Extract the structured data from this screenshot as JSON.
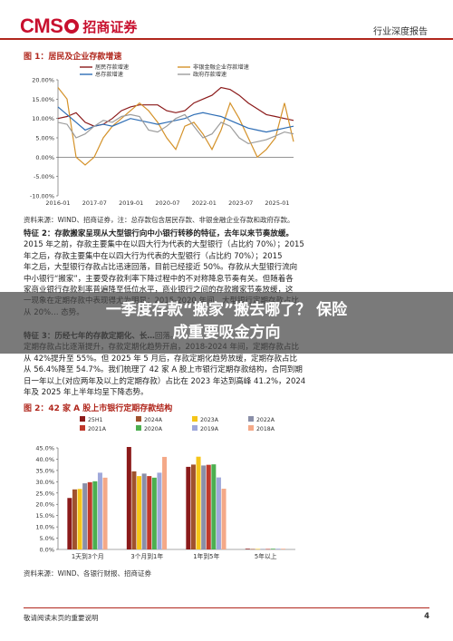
{
  "header": {
    "logo_text": "CMS",
    "logo_cn": "招商证券",
    "report_type": "行业深度报告"
  },
  "figure1": {
    "title": "图 1：居民及企业存款增速",
    "source": "资料来源：WIND、招商证券，注：总存款包含居民存款、非银金融企业存款和政府存款。"
  },
  "body1": [
    {
      "bold": "特征 2：存款搬家呈现从大型银行向中小银行转移的特征，去年以来节奏放缓。",
      "text": ""
    },
    {
      "bold": "",
      "text": "2015 年之前，存款主要集中在以四大行为代表的大型银行（占比约 70%）；2015"
    },
    {
      "bold": "",
      "text": "年之后，存款主要集中在以四大行为代表的大型银行（占比约 70%）；2015"
    },
    {
      "bold": "",
      "text": "年之后，大型银行存款占比迅速回落，目前已经接近 50%。存款从大型银行流向"
    },
    {
      "bold": "",
      "text": "中小银行“搬家”，主要受存款利率下降过程中的不对称降息节奏有关。但随着各"
    },
    {
      "bold": "",
      "text": "家商业银行存款利率普遍降至低位水平，商业银行之间的存款搬家节奏放缓，这"
    },
    {
      "bold": "",
      "text": "一现象在定期存款中表现得尤为明显：2015-2020 年间，大型银行定期存款占比"
    },
    {
      "bold": "",
      "text": "从 20%… 态势。"
    }
  ],
  "body2": [
    {
      "bold": "特征 3：历经七年的存款定期化、长…",
      "text": "回落。"
    },
    {
      "bold": "",
      "text": "定期存款占比逐渐提升，存款定期化趋势开启，2018-2024 年间，定期存款占比"
    },
    {
      "bold": "",
      "text": "从 42%提升至 55%。但 2025 年 5 月后，存款定期化趋势放缓，定期存款占比"
    },
    {
      "bold": "",
      "text": "从 56.4%降至 54.7%。我们梳理了 42 家 A 股上市银行定期存款结构，合同到期"
    },
    {
      "bold": "",
      "text": "日一年以上(对应两年及以上的定期存款）占比在 2023 年达到高峰 41.2%，2024"
    },
    {
      "bold": "",
      "text": "年及 2025 年上半年均呈下降态势。"
    }
  ],
  "overlay": {
    "line1": "一季度存款“搬家”搬去哪了？ 保险",
    "line2": "成重要吸金方向"
  },
  "figure2": {
    "title": "图 2：42 家 A 股上市银行定期存款结构",
    "source": "资料来源：WIND、各银行财报、招商证券"
  },
  "footer": {
    "note": "敬请阅读末页的重要说明",
    "page": "4"
  },
  "chart_data": [
    {
      "type": "line",
      "title": "",
      "xlabel": "",
      "ylabel": "",
      "x_ticks": [
        "2016-01",
        "2017-07",
        "2019-01",
        "2020-07",
        "2022-01",
        "2023-07",
        "2025-01"
      ],
      "y_ticks": [
        "-10.00%",
        "-5.00%",
        "0.00%",
        "5.00%",
        "10.00%",
        "15.00%",
        "20.00%"
      ],
      "ylim": [
        -10,
        20
      ],
      "legend": "top",
      "series": [
        {
          "name": "居民存款增速",
          "color": "#8b1a1a",
          "values": [
            10.0,
            10.5,
            11.5,
            9.0,
            8.0,
            8.5,
            10.0,
            12.0,
            13.0,
            13.5,
            13.5,
            13.5,
            12.0,
            11.5,
            12.0,
            14.0,
            15.0,
            16.0,
            18.0,
            17.5,
            16.0,
            14.0,
            12.5,
            11.0,
            10.5,
            10.0,
            9.5
          ]
        },
        {
          "name": "非银金融企业存款增速",
          "color": "#d4922a",
          "values": [
            18.0,
            15.0,
            0.0,
            -2.0,
            0.0,
            5.0,
            8.0,
            10.0,
            12.0,
            14.0,
            12.0,
            9.0,
            5.0,
            2.0,
            8.0,
            9.0,
            6.0,
            2.0,
            7.0,
            14.0,
            10.0,
            5.0,
            0.0,
            2.0,
            5.0,
            14.0,
            4.0
          ]
        },
        {
          "name": "总存款增速",
          "color": "#2d6db5",
          "values": [
            13.0,
            11.0,
            9.0,
            7.0,
            8.0,
            8.5,
            8.0,
            9.0,
            10.0,
            9.5,
            9.0,
            8.5,
            9.0,
            9.5,
            10.0,
            11.0,
            11.5,
            11.0,
            10.5,
            9.5,
            8.5,
            7.5,
            7.0,
            6.5,
            7.0,
            7.5,
            8.0
          ]
        },
        {
          "name": "政府存款增速",
          "color": "#9c9c9c",
          "values": [
            9.0,
            8.5,
            5.0,
            6.0,
            8.0,
            9.5,
            9.0,
            10.5,
            11.0,
            10.5,
            7.0,
            6.5,
            8.0,
            10.0,
            11.0,
            8.0,
            5.0,
            6.0,
            9.0,
            8.0,
            5.0,
            3.5,
            4.0,
            4.5,
            5.5,
            6.5,
            6.0
          ]
        }
      ]
    },
    {
      "type": "bar",
      "title": "",
      "xlabel": "",
      "ylabel": "",
      "categories": [
        "1天到3个月",
        "3个月到1年",
        "1年到5年",
        "5年以上"
      ],
      "y_ticks": [
        "0.0%",
        "5.0%",
        "10.0%",
        "15.0%",
        "20.0%",
        "25.0%",
        "30.0%",
        "35.0%",
        "40.0%",
        "45.0%"
      ],
      "ylim": [
        0,
        45
      ],
      "legend": "top",
      "series": [
        {
          "name": "25H1",
          "color": "#8b1a1a",
          "values": [
            22.8,
            45.4,
            36.6,
            0.3
          ]
        },
        {
          "name": "2024A",
          "color": "#a0522d",
          "values": [
            26.6,
            34.6,
            37.6,
            0.2
          ]
        },
        {
          "name": "2023A",
          "color": "#f5c518",
          "values": [
            26.8,
            32.5,
            41.1,
            0.2
          ]
        },
        {
          "name": "2022A",
          "color": "#8a8fa8",
          "values": [
            29.3,
            33.6,
            37.2,
            0.2
          ]
        },
        {
          "name": "2021A",
          "color": "#c0392b",
          "values": [
            29.8,
            32.5,
            37.5,
            0.2
          ]
        },
        {
          "name": "2020A",
          "color": "#4caf50",
          "values": [
            30.2,
            31.8,
            37.7,
            0.3
          ]
        },
        {
          "name": "2019A",
          "color": "#9fa8da",
          "values": [
            34.0,
            34.0,
            31.9,
            0.3
          ]
        },
        {
          "name": "2018A",
          "color": "#f4a988",
          "values": [
            31.8,
            41.0,
            26.9,
            0.3
          ]
        }
      ]
    }
  ]
}
